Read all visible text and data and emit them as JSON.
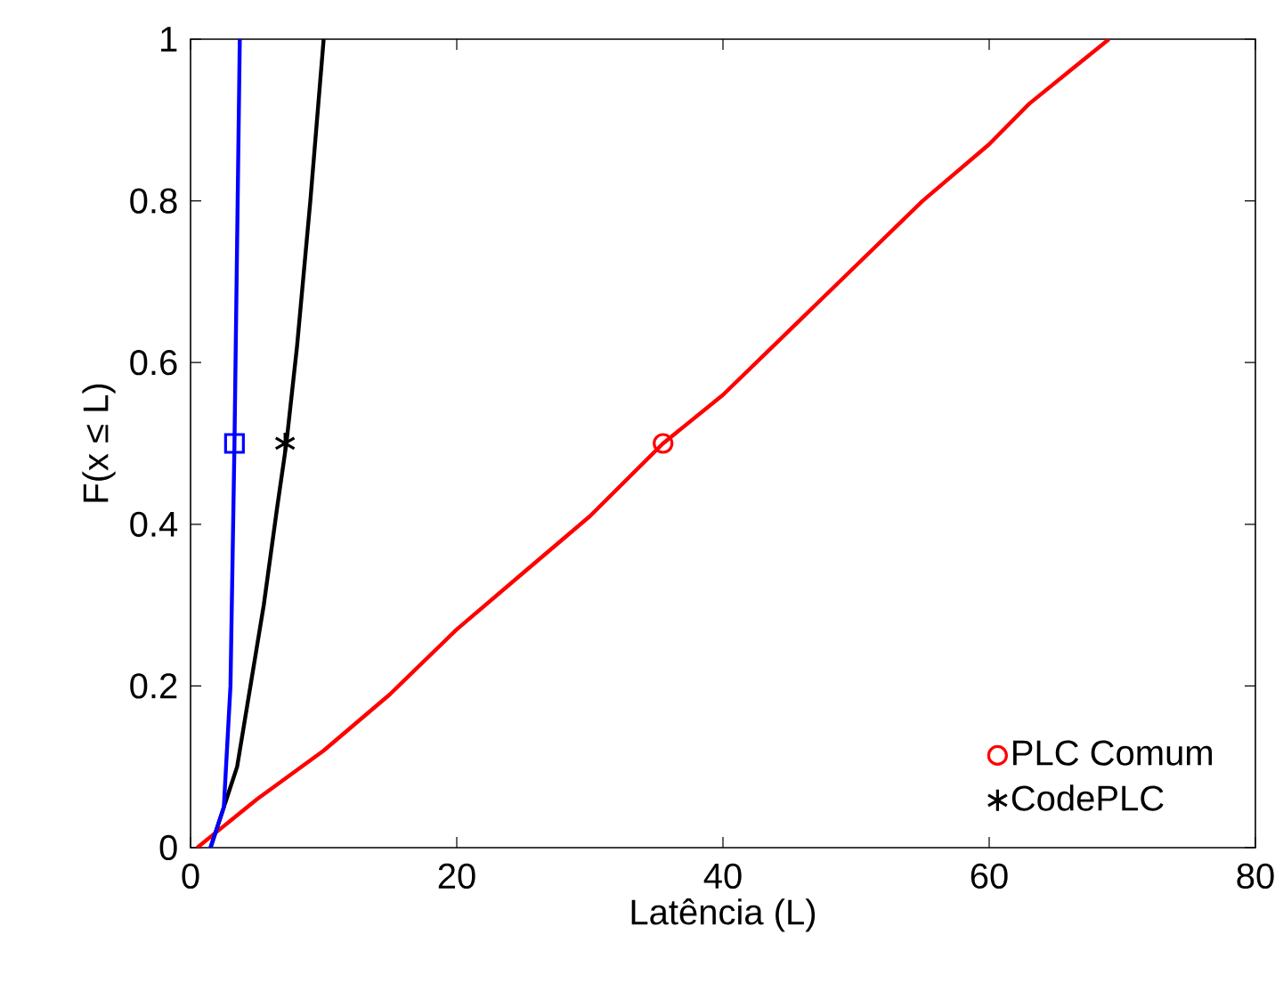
{
  "chart_data": {
    "type": "line",
    "xlabel": "Latência (L)",
    "ylabel": "F(x ≤ L)",
    "xlim": [
      0,
      80
    ],
    "ylim": [
      0,
      1
    ],
    "xticks": [
      0,
      20,
      40,
      60,
      80
    ],
    "yticks": [
      0,
      0.2,
      0.4,
      0.6,
      0.8,
      1
    ],
    "legend": "bottom right",
    "grid": false,
    "series": [
      {
        "color": "#ff0000",
        "x": [
          0.5,
          5,
          10,
          15,
          20,
          25,
          30,
          35.5,
          40,
          45,
          50,
          55,
          60,
          63,
          66,
          69
        ],
        "values": [
          0,
          0.06,
          0.12,
          0.19,
          0.27,
          0.34,
          0.41,
          0.5,
          0.56,
          0.64,
          0.72,
          0.8,
          0.87,
          0.92,
          0.96,
          1
        ]
      },
      {
        "color": "#000000",
        "x": [
          1.5,
          2.5,
          3.5,
          4.5,
          5.5,
          6.5,
          7.2,
          8,
          9,
          10
        ],
        "values": [
          0,
          0.05,
          0.1,
          0.2,
          0.3,
          0.42,
          0.5,
          0.62,
          0.8,
          1
        ]
      },
      {
        "color": "#0000ff",
        "x": [
          1.5,
          2.5,
          3,
          3.3,
          3.5,
          3.7
        ],
        "values": [
          0,
          0.05,
          0.2,
          0.5,
          0.75,
          1
        ]
      },
      {
        "type": "scatter",
        "name": "PLC Comum",
        "color": "#ff0000",
        "marker": "circle",
        "x": [
          35.5
        ],
        "values": [
          0.5
        ]
      },
      {
        "type": "scatter",
        "name": "CodePLC",
        "color": "#000000",
        "marker": "cross",
        "x": [
          7.1
        ],
        "values": [
          0.5
        ]
      },
      {
        "type": "scatter",
        "color": "#0000ff",
        "marker": "square",
        "x": [
          3.3
        ],
        "values": [
          0.5
        ]
      }
    ]
  }
}
